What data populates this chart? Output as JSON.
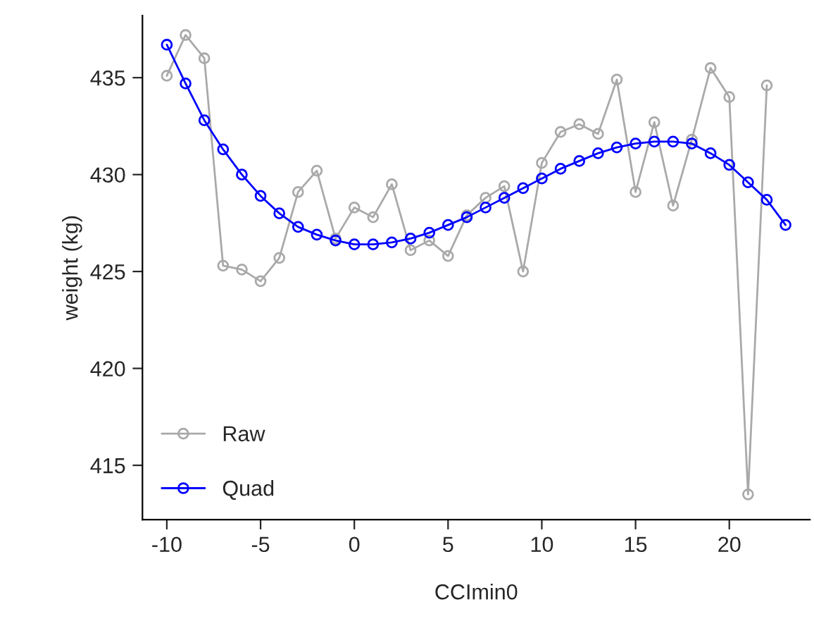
{
  "chart_data": {
    "type": "line",
    "xlabel": "CCImin0",
    "ylabel": "weight (kg)",
    "xlim": [
      -11.3,
      24.3
    ],
    "ylim": [
      412.2,
      438.2
    ],
    "xticks": [
      -10,
      -5,
      0,
      5,
      10,
      15,
      20
    ],
    "yticks": [
      415,
      420,
      425,
      430,
      435
    ],
    "grid": false,
    "legend": "bottom left",
    "marker": "circle",
    "line_style": "solid",
    "series": [
      {
        "name": "Raw",
        "color": "#a9a9a9",
        "x": [
          -10,
          -9,
          -8,
          -7,
          -6,
          -5,
          -4,
          -3,
          -2,
          -1,
          0,
          1,
          2,
          3,
          4,
          5,
          6,
          7,
          8,
          9,
          10,
          11,
          12,
          13,
          14,
          15,
          16,
          17,
          18,
          19,
          20,
          21,
          22
        ],
        "values": [
          435.1,
          437.2,
          436.0,
          425.3,
          425.1,
          424.5,
          425.7,
          429.1,
          430.2,
          426.7,
          428.3,
          427.8,
          429.5,
          426.1,
          426.6,
          425.8,
          427.9,
          428.8,
          429.4,
          425.0,
          430.6,
          432.2,
          432.6,
          432.1,
          434.9,
          429.1,
          432.7,
          428.4,
          431.8,
          435.5,
          434.0,
          413.5,
          434.6
        ]
      },
      {
        "name": "Quad",
        "color": "#0000ff",
        "x": [
          -10,
          -9,
          -8,
          -7,
          -6,
          -5,
          -4,
          -3,
          -2,
          -1,
          0,
          1,
          2,
          3,
          4,
          5,
          6,
          7,
          8,
          9,
          10,
          11,
          12,
          13,
          14,
          15,
          16,
          17,
          18,
          19,
          20,
          21,
          22,
          23
        ],
        "values": [
          436.7,
          434.7,
          432.8,
          431.3,
          430.0,
          428.9,
          428.0,
          427.3,
          426.9,
          426.6,
          426.4,
          426.4,
          426.5,
          426.7,
          427.0,
          427.4,
          427.8,
          428.3,
          428.8,
          429.3,
          429.8,
          430.3,
          430.7,
          431.1,
          431.4,
          431.6,
          431.7,
          431.7,
          431.6,
          431.1,
          430.5,
          429.6,
          428.7,
          427.4
        ]
      }
    ]
  }
}
